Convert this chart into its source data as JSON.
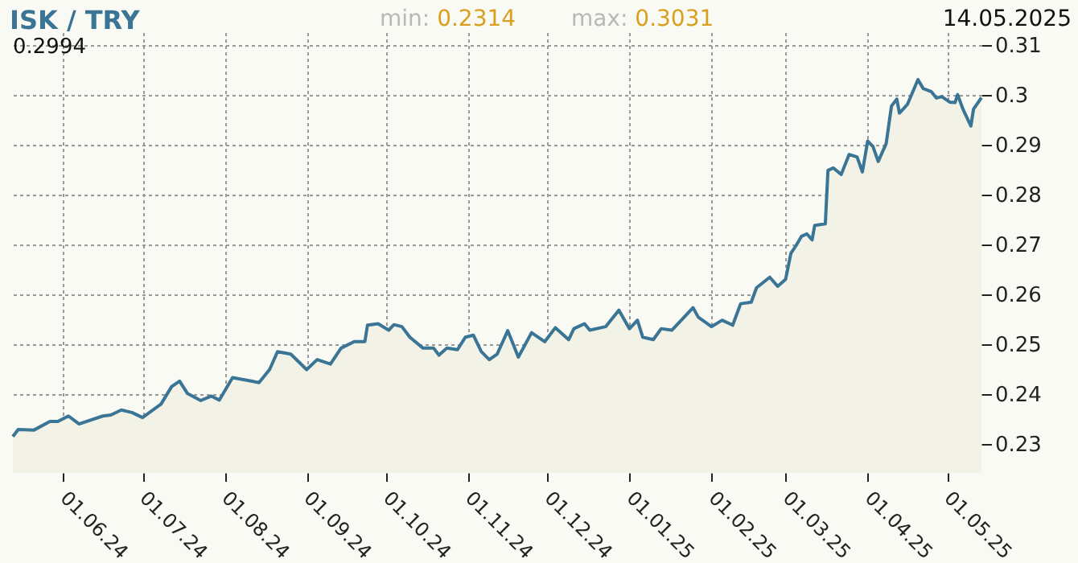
{
  "chart_data": {
    "type": "area",
    "title": "ISK / TRY",
    "annotations": [
      "min: 0.2314",
      "max: 0.3031",
      "14.05.2025",
      "0.2994"
    ],
    "x": [
      "2024-05-13",
      "2024-05-15",
      "2024-05-21",
      "2024-05-27",
      "2024-05-30",
      "2024-06-03",
      "2024-06-07",
      "2024-06-16",
      "2024-06-19",
      "2024-06-23",
      "2024-06-27",
      "2024-07-01",
      "2024-07-08",
      "2024-07-12",
      "2024-07-15",
      "2024-07-18",
      "2024-07-23",
      "2024-07-27",
      "2024-07-30",
      "2024-08-04",
      "2024-08-11",
      "2024-08-14",
      "2024-08-18",
      "2024-08-21",
      "2024-08-26",
      "2024-09-01",
      "2024-09-05",
      "2024-09-10",
      "2024-09-14",
      "2024-09-19",
      "2024-09-23",
      "2024-09-24",
      "2024-09-28",
      "2024-10-02",
      "2024-10-04",
      "2024-10-07",
      "2024-10-10",
      "2024-10-15",
      "2024-10-19",
      "2024-10-21",
      "2024-10-24",
      "2024-10-28",
      "2024-10-31",
      "2024-11-03",
      "2024-11-06",
      "2024-11-09",
      "2024-11-12",
      "2024-11-16",
      "2024-11-20",
      "2024-11-25",
      "2024-11-30",
      "2024-12-04",
      "2024-12-09",
      "2024-12-11",
      "2024-12-15",
      "2024-12-17",
      "2024-12-23",
      "2024-12-28",
      "2025-01-01",
      "2025-01-04",
      "2025-01-06",
      "2025-01-10",
      "2025-01-13",
      "2025-01-17",
      "2025-01-25",
      "2025-01-27",
      "2025-02-01",
      "2025-02-05",
      "2025-02-09",
      "2025-02-12",
      "2025-02-16",
      "2025-02-18",
      "2025-02-23",
      "2025-02-26",
      "2025-03-01",
      "2025-03-03",
      "2025-03-05",
      "2025-03-07",
      "2025-03-09",
      "2025-03-11",
      "2025-03-12",
      "2025-03-16",
      "2025-03-17",
      "2025-03-19",
      "2025-03-22",
      "2025-03-25",
      "2025-03-28",
      "2025-03-30",
      "2025-04-01",
      "2025-04-03",
      "2025-04-05",
      "2025-04-08",
      "2025-04-10",
      "2025-04-12",
      "2025-04-13",
      "2025-04-16",
      "2025-04-20",
      "2025-04-22",
      "2025-04-25",
      "2025-04-27",
      "2025-04-29",
      "2025-05-02",
      "2025-05-04",
      "2025-05-05",
      "2025-05-07",
      "2025-05-10",
      "2025-05-11",
      "2025-05-14"
    ],
    "series": [
      {
        "color": "#3a7595",
        "values": [
          0.2315,
          0.2329,
          0.2328,
          0.2345,
          0.2345,
          0.2356,
          0.234,
          0.2356,
          0.2358,
          0.2368,
          0.2363,
          0.2353,
          0.238,
          0.2415,
          0.2426,
          0.2401,
          0.2387,
          0.2396,
          0.2388,
          0.2433,
          0.2426,
          0.2423,
          0.2449,
          0.2485,
          0.248,
          0.2449,
          0.2469,
          0.246,
          0.2492,
          0.2505,
          0.2505,
          0.2538,
          0.2541,
          0.2528,
          0.2539,
          0.2535,
          0.2514,
          0.2492,
          0.2492,
          0.2478,
          0.2492,
          0.2489,
          0.2514,
          0.2518,
          0.2485,
          0.2469,
          0.248,
          0.2527,
          0.2474,
          0.2523,
          0.2505,
          0.2533,
          0.2509,
          0.2531,
          0.2541,
          0.2528,
          0.2535,
          0.2568,
          0.2531,
          0.2548,
          0.2514,
          0.2509,
          0.2531,
          0.2528,
          0.2573,
          0.2554,
          0.2535,
          0.2548,
          0.2538,
          0.2581,
          0.2584,
          0.2613,
          0.2634,
          0.2616,
          0.263,
          0.2682,
          0.2698,
          0.2716,
          0.2721,
          0.2709,
          0.2738,
          0.2741,
          0.2848,
          0.2853,
          0.284,
          0.288,
          0.2875,
          0.2845,
          0.2907,
          0.2896,
          0.2866,
          0.2902,
          0.2977,
          0.2991,
          0.2963,
          0.298,
          0.303,
          0.3012,
          0.3006,
          0.2993,
          0.2996,
          0.2985,
          0.2984,
          0.3,
          0.2971,
          0.2937,
          0.2971,
          0.2994
        ]
      }
    ],
    "xlim": [
      "2024-05-13",
      "2025-05-14"
    ],
    "xticks": [
      {
        "value": "2024-06-01",
        "label": "01.06.24"
      },
      {
        "value": "2024-07-01",
        "label": "01.07.24"
      },
      {
        "value": "2024-08-01",
        "label": "01.08.24"
      },
      {
        "value": "2024-09-01",
        "label": "01.09.24"
      },
      {
        "value": "2024-10-01",
        "label": "01.10.24"
      },
      {
        "value": "2024-11-01",
        "label": "01.11.24"
      },
      {
        "value": "2024-12-01",
        "label": "01.12.24"
      },
      {
        "value": "2025-01-01",
        "label": "01.01.25"
      },
      {
        "value": "2025-02-01",
        "label": "01.02.25"
      },
      {
        "value": "2025-03-01",
        "label": "01.03.25"
      },
      {
        "value": "2025-04-01",
        "label": "01.04.25"
      },
      {
        "value": "2025-05-01",
        "label": "01.05.25"
      }
    ],
    "ylim": [
      0.2242,
      0.3125
    ],
    "yticks": [
      0.23,
      0.24,
      0.25,
      0.26,
      0.27,
      0.28,
      0.29,
      0.3,
      0.31
    ],
    "grid": true
  }
}
